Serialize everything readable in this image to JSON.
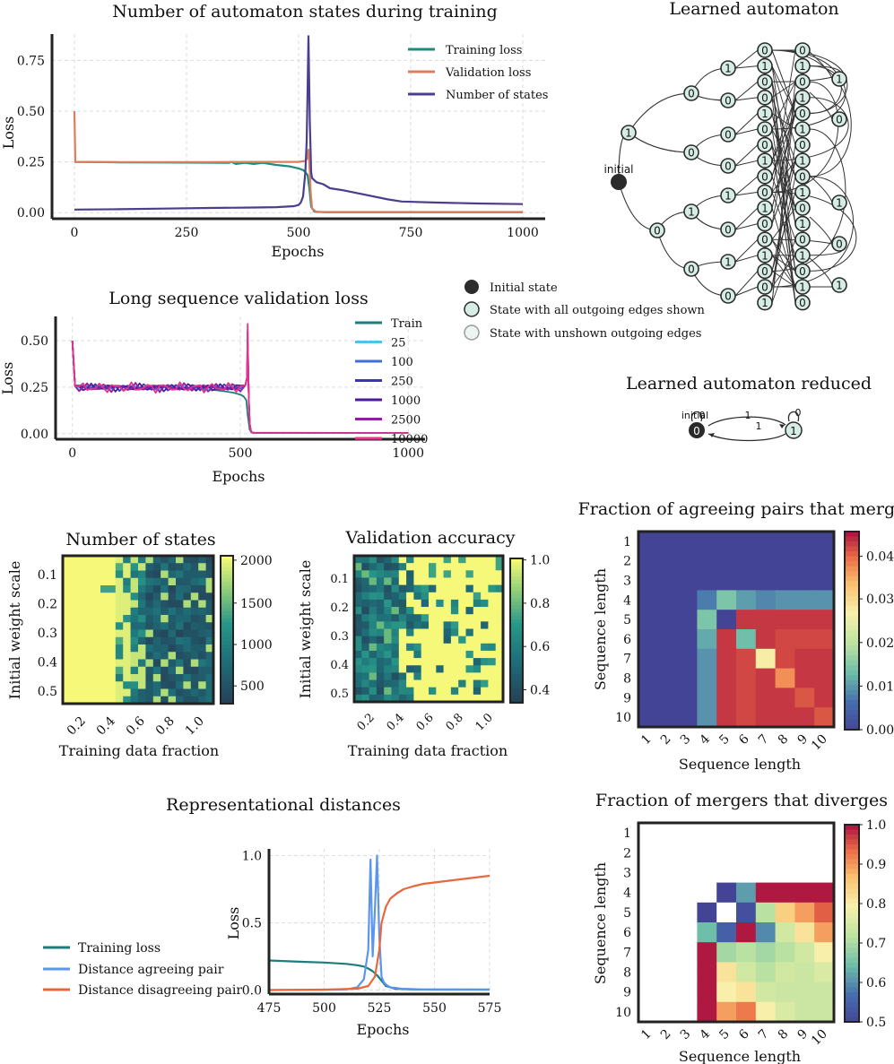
{
  "chart_data": [
    {
      "id": "states_training",
      "type": "line",
      "title": "Number of automaton states during training",
      "xlabel": "Epochs",
      "ylabel": "Loss",
      "xlim": [
        -50,
        1050
      ],
      "ylim": [
        -0.03,
        0.88
      ],
      "xticks": [
        0,
        250,
        500,
        750,
        1000
      ],
      "yticks": [
        0.0,
        0.25,
        0.5,
        0.75
      ],
      "ytick_labels": [
        "0.00",
        "0.25",
        "0.50",
        "0.75"
      ],
      "grid": true,
      "legend": "top-right",
      "series": [
        {
          "name": "Training loss",
          "color": "#1f8a80",
          "x": [
            0,
            3,
            100,
            200,
            300,
            345,
            350,
            360,
            380,
            400,
            420,
            450,
            480,
            500,
            510,
            515,
            520,
            524,
            528,
            535,
            560,
            1000
          ],
          "y": [
            0.25,
            0.25,
            0.248,
            0.247,
            0.246,
            0.245,
            0.25,
            0.24,
            0.245,
            0.24,
            0.245,
            0.235,
            0.228,
            0.218,
            0.21,
            0.2,
            0.185,
            0.12,
            0.03,
            0.005,
            0.002,
            0.002
          ]
        },
        {
          "name": "Validation loss",
          "color": "#d97f5e",
          "x": [
            0,
            2,
            5,
            100,
            200,
            300,
            400,
            500,
            515,
            520,
            522,
            525,
            527,
            530,
            540,
            1000
          ],
          "y": [
            0.5,
            0.25,
            0.25,
            0.249,
            0.249,
            0.249,
            0.25,
            0.25,
            0.255,
            0.27,
            0.31,
            0.2,
            0.1,
            0.02,
            0.003,
            0.003
          ]
        },
        {
          "name": "Number of states",
          "color": "#4a3f8e",
          "x": [
            0,
            100,
            200,
            300,
            400,
            450,
            490,
            500,
            505,
            510,
            515,
            518,
            520,
            522,
            525,
            528,
            530,
            540,
            555,
            570,
            600,
            700,
            730,
            800,
            900,
            1000
          ],
          "y": [
            0.015,
            0.017,
            0.02,
            0.023,
            0.025,
            0.027,
            0.032,
            0.038,
            0.05,
            0.08,
            0.2,
            0.35,
            0.6,
            0.87,
            0.45,
            0.2,
            0.17,
            0.15,
            0.14,
            0.12,
            0.11,
            0.065,
            0.055,
            0.05,
            0.045,
            0.042
          ]
        }
      ]
    },
    {
      "id": "long_seq",
      "type": "line",
      "title": "Long sequence validation loss",
      "xlabel": "Epochs",
      "ylabel": "Loss",
      "xlim": [
        -50,
        1050
      ],
      "ylim": [
        -0.03,
        0.63
      ],
      "xticks": [
        0,
        500,
        1000
      ],
      "yticks": [
        0.0,
        0.25,
        0.5
      ],
      "ytick_labels": [
        "0.00",
        "0.25",
        "0.50"
      ],
      "grid": true,
      "legend": "right",
      "series": [
        {
          "name": "Train",
          "color": "#1f7c7c"
        },
        {
          "name": "25",
          "color": "#4fc3e8"
        },
        {
          "name": "100",
          "color": "#3f6fd6"
        },
        {
          "name": "250",
          "color": "#3a33b8"
        },
        {
          "name": "1000",
          "color": "#4b1a9c"
        },
        {
          "name": "2500",
          "color": "#8e1fa3"
        },
        {
          "name": "10000",
          "color": "#e8338a"
        }
      ]
    },
    {
      "id": "num_states_heat",
      "type": "heatmap",
      "title": "Number of states",
      "xlabel": "Training data fraction",
      "ylabel": "Initial weight scale",
      "xticks": [
        "0.2",
        "0.4",
        "0.6",
        "0.8",
        "1.0"
      ],
      "yticks": [
        "0.1",
        "0.2",
        "0.3",
        "0.4",
        "0.5"
      ],
      "colorbar_ticks": [
        "500",
        "1000",
        "1500",
        "2000"
      ]
    },
    {
      "id": "val_acc_heat",
      "type": "heatmap",
      "title": "Validation accuracy",
      "xlabel": "Training data fraction",
      "ylabel": "Initial weight scale",
      "xticks": [
        "0.2",
        "0.4",
        "0.6",
        "0.8",
        "1.0"
      ],
      "yticks": [
        "0.1",
        "0.2",
        "0.3",
        "0.4",
        "0.5"
      ],
      "colorbar_ticks": [
        "0.4",
        "0.6",
        "0.8",
        "1.0"
      ]
    },
    {
      "id": "agree_merge",
      "type": "heatmap",
      "title": "Fraction of agreeing pairs that merge",
      "xlabel": "Sequence length",
      "ylabel": "Sequence length",
      "ticks": [
        "1",
        "2",
        "3",
        "4",
        "5",
        "6",
        "7",
        "8",
        "9",
        "10"
      ],
      "colorbar_ticks": [
        "0.00",
        "0.01",
        "0.02",
        "0.03",
        "0.04"
      ],
      "values": [
        [
          0,
          0,
          0,
          0,
          0,
          0,
          0,
          0,
          0,
          0
        ],
        [
          0,
          0,
          0,
          0,
          0,
          0,
          0,
          0,
          0,
          0
        ],
        [
          0,
          0,
          0,
          0,
          0,
          0,
          0,
          0,
          0,
          0
        ],
        [
          0,
          0,
          0,
          0.008,
          0.015,
          0.011,
          0.009,
          0.01,
          0.01,
          0.01
        ],
        [
          0,
          0,
          0,
          0.015,
          0,
          0.044,
          0.044,
          0.044,
          0.044,
          0.044
        ],
        [
          0,
          0,
          0,
          0.012,
          0.044,
          0.014,
          0.044,
          0.043,
          0.043,
          0.043
        ],
        [
          0,
          0,
          0,
          0.01,
          0.044,
          0.043,
          0.028,
          0.043,
          0.044,
          0.044
        ],
        [
          0,
          0,
          0,
          0.01,
          0.044,
          0.043,
          0.044,
          0.038,
          0.044,
          0.044
        ],
        [
          0,
          0,
          0,
          0.01,
          0.044,
          0.043,
          0.044,
          0.044,
          0.042,
          0.044
        ],
        [
          0,
          0,
          0,
          0.01,
          0.044,
          0.043,
          0.044,
          0.044,
          0.044,
          0.042
        ]
      ]
    },
    {
      "id": "merge_diverge",
      "type": "heatmap",
      "title": "Fraction of mergers that diverges",
      "xlabel": "Sequence length",
      "ylabel": "Sequence length",
      "ticks": [
        "1",
        "2",
        "3",
        "4",
        "5",
        "6",
        "7",
        "8",
        "9",
        "10"
      ],
      "colorbar_ticks": [
        "0.5",
        "0.6",
        "0.7",
        "0.8",
        "0.9",
        "1.0"
      ],
      "values": [
        [
          null,
          null,
          null,
          null,
          null,
          null,
          null,
          null,
          null,
          null
        ],
        [
          null,
          null,
          null,
          null,
          null,
          null,
          null,
          null,
          null,
          null
        ],
        [
          null,
          null,
          null,
          null,
          null,
          null,
          null,
          null,
          null,
          null
        ],
        [
          null,
          null,
          null,
          null,
          0.5,
          0.62,
          1.0,
          1.0,
          1.0,
          1.0
        ],
        [
          null,
          null,
          null,
          0.5,
          null,
          0.52,
          0.72,
          0.85,
          0.9,
          0.95
        ],
        [
          null,
          null,
          null,
          0.65,
          0.55,
          1.0,
          0.6,
          0.75,
          0.82,
          0.9
        ],
        [
          null,
          null,
          null,
          1.0,
          0.7,
          0.72,
          0.7,
          0.72,
          0.75,
          0.8
        ],
        [
          null,
          null,
          null,
          1.0,
          0.82,
          0.75,
          0.72,
          0.75,
          0.74,
          0.76
        ],
        [
          null,
          null,
          null,
          1.0,
          0.8,
          0.82,
          0.75,
          0.74,
          0.74,
          0.74
        ],
        [
          null,
          null,
          null,
          1.0,
          0.9,
          0.93,
          0.8,
          0.76,
          0.74,
          0.74
        ]
      ]
    },
    {
      "id": "repr_dist",
      "type": "line",
      "title": "Representational distances",
      "xlabel": "Epochs",
      "ylabel": "Loss",
      "xlim": [
        475,
        575
      ],
      "ylim": [
        -0.03,
        1.05
      ],
      "xticks": [
        475,
        500,
        525,
        550,
        575
      ],
      "yticks": [
        0.0,
        0.5,
        1.0
      ],
      "ytick_labels": [
        "0.0",
        "0.5",
        "1.0"
      ],
      "grid": true,
      "legend": "left",
      "series": [
        {
          "name": "Training loss",
          "color": "#1f7c7c",
          "x": [
            475,
            490,
            500,
            510,
            515,
            518,
            520,
            522,
            524,
            526,
            528,
            532,
            540,
            550,
            575
          ],
          "y": [
            0.22,
            0.21,
            0.205,
            0.195,
            0.185,
            0.175,
            0.16,
            0.14,
            0.11,
            0.07,
            0.03,
            0.01,
            0.005,
            0.003,
            0.003
          ]
        },
        {
          "name": "Distance agreeing pair",
          "color": "#5b95ec",
          "x": [
            475,
            500,
            510,
            515,
            518,
            520,
            521,
            522,
            523,
            524,
            525,
            526,
            527,
            528,
            530,
            535,
            545,
            575
          ],
          "y": [
            0.0,
            0.002,
            0.005,
            0.02,
            0.08,
            0.3,
            0.97,
            0.25,
            0.6,
            1.0,
            0.4,
            0.1,
            0.06,
            0.04,
            0.02,
            0.01,
            0.005,
            0.003
          ]
        },
        {
          "name": "Distance disagreeing pair",
          "color": "#e8683e",
          "x": [
            475,
            500,
            515,
            520,
            523,
            525,
            526,
            528,
            530,
            533,
            536,
            540,
            545,
            550,
            560,
            575
          ],
          "y": [
            0.0,
            0.003,
            0.01,
            0.03,
            0.1,
            0.3,
            0.5,
            0.62,
            0.68,
            0.72,
            0.75,
            0.77,
            0.79,
            0.8,
            0.82,
            0.85
          ]
        }
      ]
    }
  ],
  "automaton": {
    "title": "Learned automaton",
    "initial_label": "initial",
    "legend": [
      {
        "label": "Initial state",
        "kind": "initial"
      },
      {
        "label": "State with all outgoing edges shown",
        "kind": "full"
      },
      {
        "label": "State with unshown outgoing edges",
        "kind": "partial"
      }
    ]
  },
  "automaton_reduced": {
    "title": "Learned automaton reduced",
    "initial_label": "initial",
    "state0": "0",
    "state1": "1",
    "edge_top": "1",
    "edge_bottom": "1",
    "loop0": "0",
    "loop1": "0"
  },
  "colors": {
    "grid": "#d9d9d9",
    "axis": "#222222",
    "state_fill": "#d6ede6",
    "state_stroke": "#2b2b2b"
  }
}
